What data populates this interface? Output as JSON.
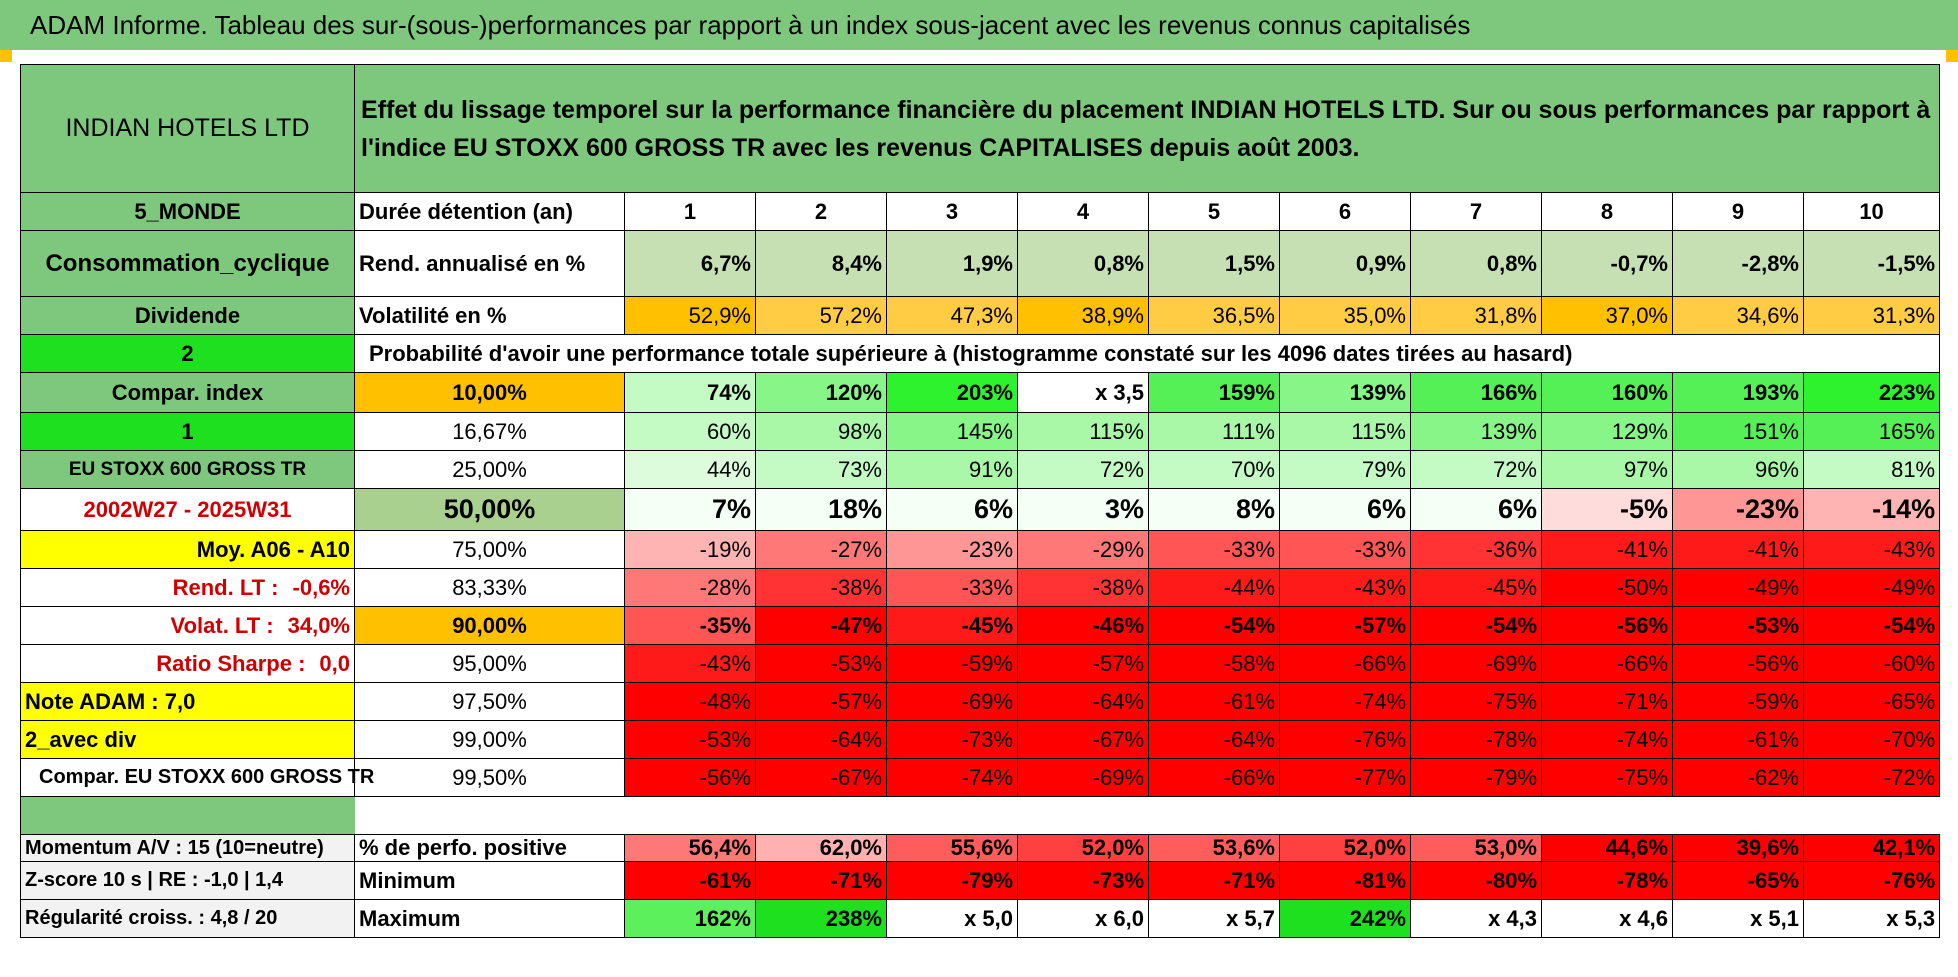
{
  "title": "ADAM Informe. Tableau des sur-(sous-)performances par rapport à un index sous-jacent avec les revenus connus capitalisés",
  "colors": {
    "banner": "#7ec87e",
    "side": "#7ec87e",
    "bright_green": "#1fe01f",
    "yellow": "#ffff00",
    "orange": "#ffc000",
    "red": "#ff0000"
  },
  "side": {
    "company": "INDIAN HOTELS LTD",
    "region": "5_MONDE",
    "sector": "Consommation_cyclique",
    "dividend": "Dividende",
    "div_value": "2",
    "compar_index": "Compar. index",
    "compar_value": "1",
    "index_name": "EU STOXX 600 GROSS TR",
    "period": "2002W27 - 2025W31",
    "moy": "Moy. A06 - A10",
    "rend_lt_label": "Rend. LT :",
    "rend_lt_value": "-0,6%",
    "volat_lt_label": "Volat. LT :",
    "volat_lt_value": "34,0%",
    "sharpe_label": "Ratio Sharpe :",
    "sharpe_value": "0,0",
    "note": "Note ADAM : 7,0",
    "avec_div": "2_avec div",
    "compar_full": "Compar. EU STOXX 600 GROSS TR",
    "momentum": "Momentum A/V : 15 (10=neutre)",
    "zscore": "Z-score 10 s | RE : -1,0 | 1,4",
    "regularite": "Régularité croiss. : 4,8 / 20"
  },
  "header_text": "Effet du lissage temporel sur la performance financière du placement INDIAN HOTELS LTD. Sur ou sous performances par rapport à l'indice EU STOXX 600 GROSS TR avec les revenus CAPITALISES depuis août 2003.",
  "duration_label": "Durée détention (an)",
  "years": [
    "1",
    "2",
    "3",
    "4",
    "5",
    "6",
    "7",
    "8",
    "9",
    "10"
  ],
  "rend_label": "Rend. annualisé en %",
  "rend": [
    "6,7%",
    "8,4%",
    "1,9%",
    "0,8%",
    "1,5%",
    "0,9%",
    "0,8%",
    "-0,7%",
    "-2,8%",
    "-1,5%"
  ],
  "vol_label": "Volatilité en %",
  "vol": [
    "52,9%",
    "57,2%",
    "47,3%",
    "38,9%",
    "36,5%",
    "35,0%",
    "31,8%",
    "37,0%",
    "34,6%",
    "31,3%"
  ],
  "prob_text": "Probabilité d'avoir une performance totale supérieure à (histogramme constaté sur les 4096 dates tirées au hasard)",
  "prob_rows": [
    {
      "p": "10,00%",
      "values": [
        "74%",
        "120%",
        "203%",
        "x 3,5",
        "159%",
        "139%",
        "166%",
        "160%",
        "193%",
        "223%"
      ]
    },
    {
      "p": "16,67%",
      "values": [
        "60%",
        "98%",
        "145%",
        "115%",
        "111%",
        "115%",
        "139%",
        "129%",
        "151%",
        "165%"
      ]
    },
    {
      "p": "25,00%",
      "values": [
        "44%",
        "73%",
        "91%",
        "72%",
        "70%",
        "79%",
        "72%",
        "97%",
        "96%",
        "81%"
      ]
    },
    {
      "p": "50,00%",
      "values": [
        "7%",
        "18%",
        "6%",
        "3%",
        "8%",
        "6%",
        "6%",
        "-5%",
        "-23%",
        "-14%"
      ]
    },
    {
      "p": "75,00%",
      "values": [
        "-19%",
        "-27%",
        "-23%",
        "-29%",
        "-33%",
        "-33%",
        "-36%",
        "-41%",
        "-41%",
        "-43%"
      ]
    },
    {
      "p": "83,33%",
      "values": [
        "-28%",
        "-38%",
        "-33%",
        "-38%",
        "-44%",
        "-43%",
        "-45%",
        "-50%",
        "-49%",
        "-49%"
      ]
    },
    {
      "p": "90,00%",
      "values": [
        "-35%",
        "-47%",
        "-45%",
        "-46%",
        "-54%",
        "-57%",
        "-54%",
        "-56%",
        "-53%",
        "-54%"
      ]
    },
    {
      "p": "95,00%",
      "values": [
        "-43%",
        "-53%",
        "-59%",
        "-57%",
        "-58%",
        "-66%",
        "-69%",
        "-66%",
        "-56%",
        "-60%"
      ]
    },
    {
      "p": "97,50%",
      "values": [
        "-48%",
        "-57%",
        "-69%",
        "-64%",
        "-61%",
        "-74%",
        "-75%",
        "-71%",
        "-59%",
        "-65%"
      ]
    },
    {
      "p": "99,00%",
      "values": [
        "-53%",
        "-64%",
        "-73%",
        "-67%",
        "-64%",
        "-76%",
        "-78%",
        "-74%",
        "-61%",
        "-70%"
      ]
    },
    {
      "p": "99,50%",
      "values": [
        "-56%",
        "-67%",
        "-74%",
        "-69%",
        "-66%",
        "-77%",
        "-79%",
        "-75%",
        "-62%",
        "-72%"
      ]
    }
  ],
  "pos_label": "% de perfo. positive",
  "pos": [
    "56,4%",
    "62,0%",
    "55,6%",
    "52,0%",
    "53,6%",
    "52,0%",
    "53,0%",
    "44,6%",
    "39,6%",
    "42,1%"
  ],
  "min_label": "Minimum",
  "min": [
    "-61%",
    "-71%",
    "-79%",
    "-73%",
    "-71%",
    "-81%",
    "-80%",
    "-78%",
    "-65%",
    "-76%"
  ],
  "max_label": "Maximum",
  "max": [
    "162%",
    "238%",
    "x 5,0",
    "x 6,0",
    "x 5,7",
    "242%",
    "x 4,3",
    "x 4,6",
    "x 5,1",
    "x 5,3"
  ]
}
